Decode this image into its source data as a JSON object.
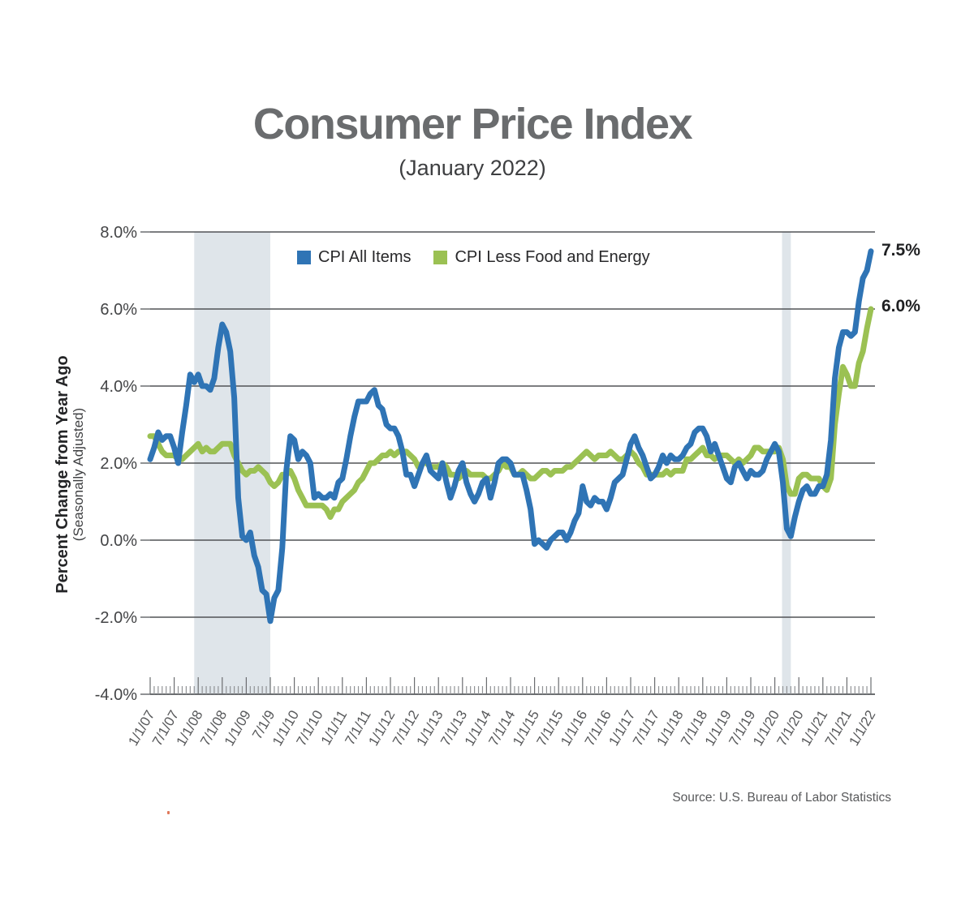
{
  "chart_data": {
    "type": "line",
    "title": "Consumer Price Index",
    "subtitle": "(January 2022)",
    "ylabel": "Percent Change from Year Ago",
    "ylabel_note": "(Seasonally Adjusted)",
    "source_label": "Source: U.S. Bureau of Labor Statistics",
    "x_start": "1/1/07",
    "x_end": "1/1/22",
    "x_interval": "monthly",
    "ylim": [
      -4,
      8
    ],
    "y_step": 2,
    "y_tick_values": [
      8,
      6,
      4,
      2,
      0,
      -2,
      -4
    ],
    "y_tick_labels": [
      "8.0%",
      "6.0%",
      "4.0%",
      "2.0%",
      "0.0%",
      "-2.0%",
      "-4.0%"
    ],
    "x_tick_labels": [
      "1/1/07",
      "7/1/07",
      "1/1/08",
      "7/1/08",
      "1/1/09",
      "7/1/9",
      "1/1/10",
      "7/1/10",
      "1/1/11",
      "7/1/11",
      "1/1/12",
      "7/1/12",
      "1/1/13",
      "7/1/13",
      "1/1/14",
      "7/1/14",
      "1/1/15",
      "7/1/15",
      "1/1/16",
      "7/1/16",
      "1/1/17",
      "7/1/17",
      "1/1/18",
      "7/1/18",
      "1/1/19",
      "7/1/19",
      "1/1/20",
      "7/1/20",
      "1/1/21",
      "7/1/21",
      "1/1/22"
    ],
    "grid": true,
    "legend_position": "top-inside",
    "band_color": "#dfe5ea",
    "recession_bands": [
      {
        "start_month_index": 11,
        "end_month_index": 30
      },
      {
        "start_month_index": 157.8,
        "end_month_index": 160
      }
    ],
    "end_labels": {
      "all_items": "7.5%",
      "core": "6.0%"
    },
    "series": [
      {
        "name": "CPI All Items",
        "color": "#2f74b5",
        "values": [
          2.1,
          2.4,
          2.8,
          2.6,
          2.7,
          2.7,
          2.4,
          2.0,
          2.8,
          3.5,
          4.3,
          4.1,
          4.3,
          4.0,
          4.0,
          3.9,
          4.2,
          5.0,
          5.6,
          5.4,
          4.9,
          3.7,
          1.1,
          0.1,
          0.0,
          0.2,
          -0.4,
          -0.7,
          -1.3,
          -1.4,
          -2.1,
          -1.5,
          -1.3,
          -0.2,
          1.8,
          2.7,
          2.6,
          2.1,
          2.3,
          2.2,
          2.0,
          1.1,
          1.2,
          1.1,
          1.1,
          1.2,
          1.1,
          1.5,
          1.6,
          2.1,
          2.7,
          3.2,
          3.6,
          3.6,
          3.6,
          3.8,
          3.9,
          3.5,
          3.4,
          3.0,
          2.9,
          2.9,
          2.7,
          2.3,
          1.7,
          1.7,
          1.4,
          1.7,
          2.0,
          2.2,
          1.8,
          1.7,
          1.6,
          2.0,
          1.5,
          1.1,
          1.4,
          1.8,
          2.0,
          1.5,
          1.2,
          1.0,
          1.2,
          1.5,
          1.6,
          1.1,
          1.5,
          2.0,
          2.1,
          2.1,
          2.0,
          1.7,
          1.7,
          1.7,
          1.3,
          0.8,
          -0.1,
          0.0,
          -0.1,
          -0.2,
          0.0,
          0.1,
          0.2,
          0.2,
          0.0,
          0.2,
          0.5,
          0.7,
          1.4,
          1.0,
          0.9,
          1.1,
          1.0,
          1.0,
          0.8,
          1.1,
          1.5,
          1.6,
          1.7,
          2.1,
          2.5,
          2.7,
          2.4,
          2.2,
          1.9,
          1.6,
          1.7,
          1.9,
          2.2,
          2.0,
          2.2,
          2.1,
          2.1,
          2.2,
          2.4,
          2.5,
          2.8,
          2.9,
          2.9,
          2.7,
          2.3,
          2.5,
          2.2,
          1.9,
          1.6,
          1.5,
          1.9,
          2.0,
          1.8,
          1.6,
          1.8,
          1.7,
          1.7,
          1.8,
          2.1,
          2.3,
          2.5,
          2.3,
          1.5,
          0.3,
          0.1,
          0.6,
          1.0,
          1.3,
          1.4,
          1.2,
          1.2,
          1.4,
          1.4,
          1.7,
          2.6,
          4.2,
          5.0,
          5.4,
          5.4,
          5.3,
          5.4,
          6.2,
          6.8,
          7.0,
          7.5
        ]
      },
      {
        "name": "CPI Less Food and Energy",
        "color": "#9bc153",
        "values": [
          2.7,
          2.7,
          2.5,
          2.3,
          2.2,
          2.2,
          2.2,
          2.1,
          2.1,
          2.2,
          2.3,
          2.4,
          2.5,
          2.3,
          2.4,
          2.3,
          2.3,
          2.4,
          2.5,
          2.5,
          2.5,
          2.2,
          2.0,
          1.8,
          1.7,
          1.8,
          1.8,
          1.9,
          1.8,
          1.7,
          1.5,
          1.4,
          1.5,
          1.7,
          1.7,
          1.8,
          1.6,
          1.3,
          1.1,
          0.9,
          0.9,
          0.9,
          0.9,
          0.9,
          0.8,
          0.6,
          0.8,
          0.8,
          1.0,
          1.1,
          1.2,
          1.3,
          1.5,
          1.6,
          1.8,
          2.0,
          2.0,
          2.1,
          2.2,
          2.2,
          2.3,
          2.2,
          2.3,
          2.3,
          2.3,
          2.2,
          2.1,
          1.9,
          2.0,
          2.0,
          1.9,
          1.9,
          1.9,
          2.0,
          1.9,
          1.7,
          1.7,
          1.6,
          1.7,
          1.8,
          1.7,
          1.7,
          1.7,
          1.7,
          1.6,
          1.6,
          1.7,
          1.8,
          2.0,
          1.9,
          1.9,
          1.7,
          1.7,
          1.8,
          1.7,
          1.6,
          1.6,
          1.7,
          1.8,
          1.8,
          1.7,
          1.8,
          1.8,
          1.8,
          1.9,
          1.9,
          2.0,
          2.1,
          2.2,
          2.3,
          2.2,
          2.1,
          2.2,
          2.2,
          2.2,
          2.3,
          2.2,
          2.1,
          2.1,
          2.2,
          2.3,
          2.2,
          2.0,
          1.9,
          1.7,
          1.7,
          1.7,
          1.7,
          1.7,
          1.8,
          1.7,
          1.8,
          1.8,
          1.8,
          2.1,
          2.1,
          2.2,
          2.3,
          2.4,
          2.2,
          2.2,
          2.1,
          2.2,
          2.2,
          2.2,
          2.1,
          2.0,
          2.1,
          2.0,
          2.1,
          2.2,
          2.4,
          2.4,
          2.3,
          2.3,
          2.3,
          2.3,
          2.4,
          2.1,
          1.4,
          1.2,
          1.2,
          1.6,
          1.7,
          1.7,
          1.6,
          1.6,
          1.6,
          1.4,
          1.3,
          1.6,
          3.0,
          3.8,
          4.5,
          4.3,
          4.0,
          4.0,
          4.6,
          4.9,
          5.5,
          6.0
        ]
      }
    ],
    "axis_colors": {
      "gridline": "#515356",
      "baseline": "#6b6d70",
      "tick": "#919396",
      "tick_label": "#57585a",
      "y_label": "#434446"
    }
  }
}
